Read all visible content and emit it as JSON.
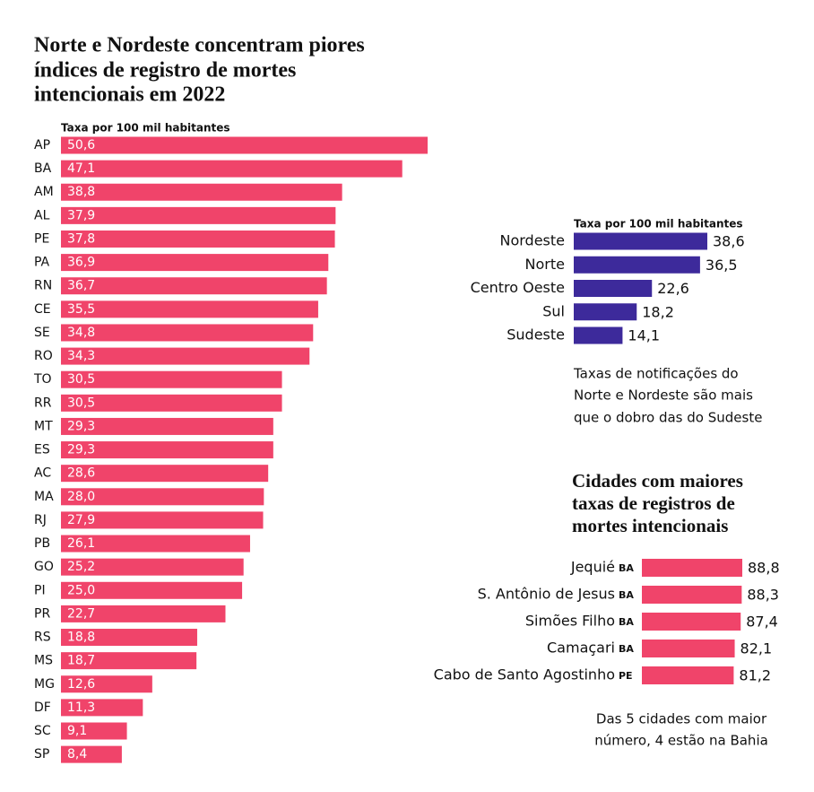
{
  "chart_data": [
    {
      "type": "bar",
      "title": [
        "Norte e Nordeste concentram piores",
        "índices de registro de mortes",
        "intencionais em 2022"
      ],
      "subtitle": "Taxa por 100 mil habitantes",
      "categories": [
        "AP",
        "BA",
        "AM",
        "AL",
        "PE",
        "PA",
        "RN",
        "CE",
        "SE",
        "RO",
        "TO",
        "RR",
        "MT",
        "ES",
        "AC",
        "MA",
        "RJ",
        "PB",
        "GO",
        "PI",
        "PR",
        "RS",
        "MS",
        "MG",
        "DF",
        "SC",
        "SP"
      ],
      "values": [
        50.6,
        47.1,
        38.8,
        37.9,
        37.8,
        36.9,
        36.7,
        35.5,
        34.8,
        34.3,
        30.5,
        30.5,
        29.3,
        29.3,
        28.6,
        28.0,
        27.9,
        26.1,
        25.2,
        25.0,
        22.7,
        18.8,
        18.7,
        12.6,
        11.3,
        9.1,
        8.4
      ],
      "value_labels": [
        "50,6",
        "47,1",
        "38,8",
        "37,9",
        "37,8",
        "36,9",
        "36,7",
        "35,5",
        "34,8",
        "34,3",
        "30,5",
        "30,5",
        "29,3",
        "29,3",
        "28,6",
        "28,0",
        "27,9",
        "26,1",
        "25,2",
        "25,0",
        "22,7",
        "18,8",
        "18,7",
        "12,6",
        "11,3",
        "9,1",
        "8,4"
      ],
      "color": "#f0446a"
    },
    {
      "type": "bar",
      "subtitle": "Taxa por 100 mil habitantes",
      "categories": [
        "Nordeste",
        "Norte",
        "Centro Oeste",
        "Sul",
        "Sudeste"
      ],
      "values": [
        38.6,
        36.5,
        22.6,
        18.2,
        14.1
      ],
      "value_labels": [
        "38,6",
        "36,5",
        "22,6",
        "18,2",
        "14,1"
      ],
      "color": "#3d2a9b",
      "annotation": [
        "Taxas de notificações do",
        "Norte e Nordeste são mais",
        "que o dobro das do Sudeste"
      ]
    },
    {
      "type": "bar",
      "title": [
        "Cidades com maiores",
        "taxas de registros de",
        "mortes intencionais"
      ],
      "categories": [
        "Jequié",
        "S. Antônio de Jesus",
        "Simões Filho",
        "Camaçari",
        "Cabo de Santo Agostinho"
      ],
      "category_tags": [
        "BA",
        "BA",
        "BA",
        "BA",
        "PE"
      ],
      "values": [
        88.8,
        88.3,
        87.4,
        82.1,
        81.2
      ],
      "value_labels": [
        "88,8",
        "88,3",
        "87,4",
        "82,1",
        "81,2"
      ],
      "color": "#f0446a",
      "annotation": [
        "Das 5 cidades com maior",
        "número, 4 estão na Bahia"
      ]
    }
  ]
}
